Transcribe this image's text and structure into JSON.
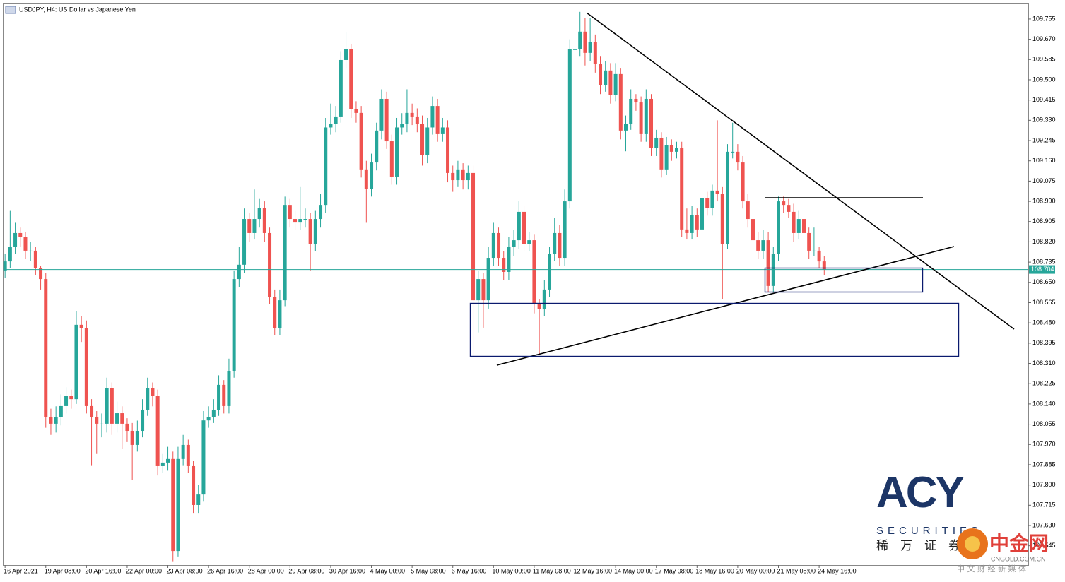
{
  "chart_data": {
    "type": "candlestick",
    "title": "USDJPY, H4:  US Dollar vs Japanese Yen",
    "up_color": "#26a69a",
    "down_color": "#ef5350",
    "last_price": 108.704,
    "last_price_color": "#26a69a",
    "xlim": [
      -0.3,
      201.1
    ],
    "ylim": [
      107.464,
      109.82
    ],
    "xticks": [
      {
        "value": 0,
        "label": "16 Apr 2021"
      },
      {
        "value": 8,
        "label": "19 Apr 08:00"
      },
      {
        "value": 16,
        "label": "20 Apr 16:00"
      },
      {
        "value": 24,
        "label": "22 Apr 00:00"
      },
      {
        "value": 32,
        "label": "23 Apr 08:00"
      },
      {
        "value": 40,
        "label": "26 Apr 16:00"
      },
      {
        "value": 48,
        "label": "28 Apr 00:00"
      },
      {
        "value": 56,
        "label": "29 Apr 08:00"
      },
      {
        "value": 64,
        "label": "30 Apr 16:00"
      },
      {
        "value": 72,
        "label": "4 May 00:00"
      },
      {
        "value": 80,
        "label": "5 May 08:00"
      },
      {
        "value": 88,
        "label": "6 May 16:00"
      },
      {
        "value": 96,
        "label": "10 May 00:00"
      },
      {
        "value": 104,
        "label": "11 May 08:00"
      },
      {
        "value": 112,
        "label": "12 May 16:00"
      },
      {
        "value": 120,
        "label": "14 May 00:00"
      },
      {
        "value": 128,
        "label": "17 May 08:00"
      },
      {
        "value": 136,
        "label": "18 May 16:00"
      },
      {
        "value": 144,
        "label": "20 May 00:00"
      },
      {
        "value": 152,
        "label": "21 May 08:00"
      },
      {
        "value": 160,
        "label": "24 May 16:00"
      }
    ],
    "yticks": [
      109.755,
      {
        "value": 109.67,
        "label": "109.670"
      },
      109.585,
      {
        "value": 109.5,
        "label": "109.500"
      },
      109.415,
      {
        "value": 109.33,
        "label": "109.330"
      },
      109.245,
      {
        "value": 109.16,
        "label": "109.160"
      },
      109.075,
      {
        "value": 108.99,
        "label": "108.990"
      },
      108.905,
      {
        "value": 108.82,
        "label": "108.820"
      },
      108.735,
      {
        "value": 108.65,
        "label": "108.650"
      },
      108.565,
      {
        "value": 108.48,
        "label": "108.480"
      },
      108.395,
      {
        "value": 108.31,
        "label": "108.310"
      },
      108.225,
      {
        "value": 108.14,
        "label": "108.140"
      },
      108.055,
      {
        "value": 107.97,
        "label": "107.970"
      },
      107.885,
      {
        "value": 107.8,
        "label": "107.800"
      },
      107.715,
      {
        "value": 107.63,
        "label": "107.630"
      },
      107.545
    ],
    "candles": [
      [
        108.7,
        108.77,
        108.67,
        108.738
      ],
      [
        108.738,
        108.95,
        108.71,
        108.798
      ],
      [
        108.798,
        108.9,
        108.77,
        108.857
      ],
      [
        108.857,
        108.88,
        108.8,
        108.842
      ],
      [
        108.842,
        108.86,
        108.75,
        108.783
      ],
      [
        108.783,
        108.82,
        108.74,
        108.783
      ],
      [
        108.783,
        108.8,
        108.68,
        108.709
      ],
      [
        108.709,
        108.72,
        108.62,
        108.664
      ],
      [
        108.664,
        108.69,
        108.04,
        108.086
      ],
      [
        108.086,
        108.12,
        108.01,
        108.057
      ],
      [
        108.057,
        108.13,
        108.02,
        108.086
      ],
      [
        108.086,
        108.18,
        108.05,
        108.131
      ],
      [
        108.131,
        108.21,
        108.1,
        108.175
      ],
      [
        108.175,
        108.2,
        108.12,
        108.16
      ],
      [
        108.16,
        108.53,
        108.14,
        108.472
      ],
      [
        108.472,
        108.51,
        108.4,
        108.457
      ],
      [
        108.457,
        108.49,
        108.1,
        108.131
      ],
      [
        108.131,
        108.16,
        107.88,
        108.086
      ],
      [
        108.086,
        108.11,
        107.93,
        108.057
      ],
      [
        108.057,
        108.1,
        108.0,
        108.057
      ],
      [
        108.057,
        108.25,
        108.02,
        108.205
      ],
      [
        108.205,
        108.23,
        108.01,
        108.057
      ],
      [
        108.057,
        108.15,
        108.02,
        108.101
      ],
      [
        108.101,
        108.13,
        107.95,
        108.057
      ],
      [
        108.057,
        108.08,
        107.98,
        108.027
      ],
      [
        108.027,
        108.06,
        107.82,
        107.968
      ],
      [
        107.968,
        108.07,
        107.94,
        108.027
      ],
      [
        108.027,
        108.16,
        108.0,
        108.116
      ],
      [
        108.116,
        108.25,
        108.09,
        108.205
      ],
      [
        108.205,
        108.23,
        108.13,
        108.175
      ],
      [
        108.175,
        108.2,
        107.84,
        107.879
      ],
      [
        107.879,
        107.93,
        107.85,
        107.894
      ],
      [
        107.894,
        107.96,
        107.86,
        107.909
      ],
      [
        107.909,
        107.94,
        107.48,
        107.523
      ],
      [
        107.523,
        107.96,
        107.5,
        107.909
      ],
      [
        107.909,
        108.01,
        107.88,
        107.968
      ],
      [
        107.968,
        107.99,
        107.85,
        107.879
      ],
      [
        107.879,
        107.9,
        107.68,
        107.716
      ],
      [
        107.716,
        107.8,
        107.68,
        107.76
      ],
      [
        107.76,
        108.11,
        107.73,
        108.071
      ],
      [
        108.071,
        108.13,
        108.04,
        108.086
      ],
      [
        108.086,
        108.16,
        108.06,
        108.116
      ],
      [
        108.116,
        108.26,
        108.09,
        108.22
      ],
      [
        108.22,
        108.24,
        108.1,
        108.131
      ],
      [
        108.131,
        108.33,
        108.1,
        108.279
      ],
      [
        108.279,
        108.7,
        108.25,
        108.664
      ],
      [
        108.664,
        108.8,
        108.63,
        108.724
      ],
      [
        108.724,
        108.96,
        108.69,
        108.916
      ],
      [
        108.916,
        108.94,
        108.82,
        108.857
      ],
      [
        108.857,
        109.04,
        108.83,
        108.916
      ],
      [
        108.916,
        109.0,
        108.88,
        108.961
      ],
      [
        108.961,
        108.99,
        108.82,
        108.857
      ],
      [
        108.857,
        108.88,
        108.56,
        108.59
      ],
      [
        108.59,
        108.62,
        108.43,
        108.457
      ],
      [
        108.457,
        108.62,
        108.43,
        108.575
      ],
      [
        108.575,
        109.01,
        108.55,
        108.975
      ],
      [
        108.975,
        109.0,
        108.88,
        108.916
      ],
      [
        108.916,
        108.95,
        108.87,
        108.901
      ],
      [
        108.901,
        109.05,
        108.87,
        108.916
      ],
      [
        108.916,
        108.96,
        108.88,
        108.916
      ],
      [
        108.916,
        108.94,
        108.7,
        108.812
      ],
      [
        108.812,
        108.95,
        108.78,
        108.916
      ],
      [
        108.916,
        109.02,
        108.88,
        108.975
      ],
      [
        108.975,
        109.34,
        108.94,
        109.3
      ],
      [
        109.3,
        109.4,
        109.27,
        109.316
      ],
      [
        109.316,
        109.39,
        109.28,
        109.346
      ],
      [
        109.346,
        109.62,
        109.32,
        109.583
      ],
      [
        109.583,
        109.7,
        109.55,
        109.628
      ],
      [
        109.628,
        109.65,
        109.34,
        109.376
      ],
      [
        109.376,
        109.41,
        109.32,
        109.361
      ],
      [
        109.361,
        109.39,
        109.09,
        109.124
      ],
      [
        109.124,
        109.16,
        108.9,
        109.041
      ],
      [
        109.041,
        109.19,
        109.01,
        109.153
      ],
      [
        109.153,
        109.32,
        109.12,
        109.287
      ],
      [
        109.287,
        109.46,
        109.25,
        109.42
      ],
      [
        109.42,
        109.45,
        109.21,
        109.242
      ],
      [
        109.242,
        109.27,
        109.06,
        109.094
      ],
      [
        109.094,
        109.34,
        109.06,
        109.3
      ],
      [
        109.3,
        109.36,
        109.27,
        109.316
      ],
      [
        109.316,
        109.46,
        109.28,
        109.361
      ],
      [
        109.361,
        109.4,
        109.31,
        109.346
      ],
      [
        109.346,
        109.38,
        109.28,
        109.316
      ],
      [
        109.316,
        109.35,
        109.14,
        109.183
      ],
      [
        109.183,
        109.34,
        109.15,
        109.3
      ],
      [
        109.3,
        109.43,
        109.27,
        109.39
      ],
      [
        109.39,
        109.42,
        109.24,
        109.272
      ],
      [
        109.272,
        109.34,
        109.24,
        109.3
      ],
      [
        109.3,
        109.33,
        109.07,
        109.109
      ],
      [
        109.109,
        109.14,
        109.03,
        109.079
      ],
      [
        109.079,
        109.16,
        109.05,
        109.124
      ],
      [
        109.124,
        109.15,
        109.04,
        109.079
      ],
      [
        109.079,
        109.14,
        109.04,
        109.109
      ],
      [
        109.109,
        109.14,
        108.34,
        108.575
      ],
      [
        108.575,
        108.7,
        108.44,
        108.664
      ],
      [
        108.664,
        108.69,
        108.46,
        108.575
      ],
      [
        108.575,
        108.8,
        108.54,
        108.753
      ],
      [
        108.753,
        108.9,
        108.72,
        108.857
      ],
      [
        108.857,
        108.88,
        108.72,
        108.753
      ],
      [
        108.753,
        108.78,
        108.66,
        108.694
      ],
      [
        108.694,
        108.84,
        108.66,
        108.798
      ],
      [
        108.798,
        108.87,
        108.76,
        108.827
      ],
      [
        108.827,
        108.99,
        108.79,
        108.946
      ],
      [
        108.946,
        108.97,
        108.78,
        108.812
      ],
      [
        108.812,
        108.86,
        108.78,
        108.827
      ],
      [
        108.827,
        108.85,
        108.52,
        108.561
      ],
      [
        108.561,
        108.58,
        108.35,
        108.537
      ],
      [
        108.537,
        108.66,
        108.51,
        108.62
      ],
      [
        108.62,
        108.8,
        108.59,
        108.768
      ],
      [
        108.768,
        108.92,
        108.74,
        108.857
      ],
      [
        108.857,
        108.89,
        108.72,
        108.753
      ],
      [
        108.753,
        109.04,
        108.72,
        108.99
      ],
      [
        108.99,
        109.67,
        108.96,
        109.628
      ],
      [
        109.628,
        109.72,
        109.55,
        109.628
      ],
      [
        109.628,
        109.785,
        109.6,
        109.702
      ],
      [
        109.702,
        109.76,
        109.56,
        109.613
      ],
      [
        109.613,
        109.76,
        109.58,
        109.657
      ],
      [
        109.657,
        109.69,
        109.53,
        109.568
      ],
      [
        109.568,
        109.6,
        109.44,
        109.479
      ],
      [
        109.479,
        109.58,
        109.45,
        109.539
      ],
      [
        109.539,
        109.57,
        109.4,
        109.435
      ],
      [
        109.435,
        109.57,
        109.41,
        109.524
      ],
      [
        109.524,
        109.55,
        109.25,
        109.287
      ],
      [
        109.287,
        109.35,
        109.2,
        109.316
      ],
      [
        109.316,
        109.46,
        109.29,
        109.42
      ],
      [
        109.42,
        109.44,
        109.37,
        109.405
      ],
      [
        109.405,
        109.43,
        109.24,
        109.272
      ],
      [
        109.272,
        109.46,
        109.24,
        109.42
      ],
      [
        109.42,
        109.44,
        109.18,
        109.213
      ],
      [
        109.213,
        109.29,
        109.18,
        109.257
      ],
      [
        109.257,
        109.28,
        109.09,
        109.124
      ],
      [
        109.124,
        109.26,
        109.1,
        109.227
      ],
      [
        109.227,
        109.25,
        109.16,
        109.198
      ],
      [
        109.198,
        109.24,
        109.17,
        109.213
      ],
      [
        109.213,
        109.24,
        108.84,
        108.872
      ],
      [
        108.872,
        108.96,
        108.83,
        108.857
      ],
      [
        108.857,
        108.97,
        108.83,
        108.931
      ],
      [
        108.931,
        108.96,
        108.84,
        108.872
      ],
      [
        108.872,
        109.04,
        108.85,
        109.005
      ],
      [
        109.005,
        109.03,
        108.93,
        108.961
      ],
      [
        108.961,
        109.06,
        108.93,
        109.035
      ],
      [
        109.035,
        109.33,
        108.99,
        109.02
      ],
      [
        109.02,
        109.05,
        108.58,
        108.812
      ],
      [
        108.812,
        109.23,
        108.79,
        109.198
      ],
      [
        109.198,
        109.32,
        109.17,
        109.198
      ],
      [
        109.198,
        109.23,
        109.12,
        109.153
      ],
      [
        109.153,
        109.18,
        108.96,
        108.99
      ],
      [
        108.99,
        109.02,
        108.88,
        108.916
      ],
      [
        108.916,
        108.95,
        108.79,
        108.827
      ],
      [
        108.827,
        108.86,
        108.75,
        108.783
      ],
      [
        108.783,
        108.87,
        108.75,
        108.827
      ],
      [
        108.827,
        108.86,
        108.61,
        108.635
      ],
      [
        108.635,
        108.8,
        108.61,
        108.768
      ],
      [
        108.768,
        109.01,
        108.74,
        108.99
      ],
      [
        108.99,
        109.01,
        108.94,
        108.975
      ],
      [
        108.975,
        109.0,
        108.92,
        108.946
      ],
      [
        108.946,
        108.98,
        108.82,
        108.857
      ],
      [
        108.857,
        108.95,
        108.83,
        108.916
      ],
      [
        108.916,
        108.94,
        108.83,
        108.857
      ],
      [
        108.857,
        108.88,
        108.75,
        108.783
      ],
      [
        108.783,
        108.88,
        108.76,
        108.783
      ],
      [
        108.783,
        108.8,
        108.71,
        108.738
      ],
      [
        108.738,
        108.76,
        108.68,
        108.704
      ]
    ]
  },
  "logo": {
    "brand": "ACY",
    "sub": "SECURITIES",
    "cn": "稀　万　证　券"
  },
  "watermark": {
    "name": "中金网",
    "site": "CNGOLD.COM.CN",
    "slogan": "中 文 财 经 新 媒 体"
  }
}
